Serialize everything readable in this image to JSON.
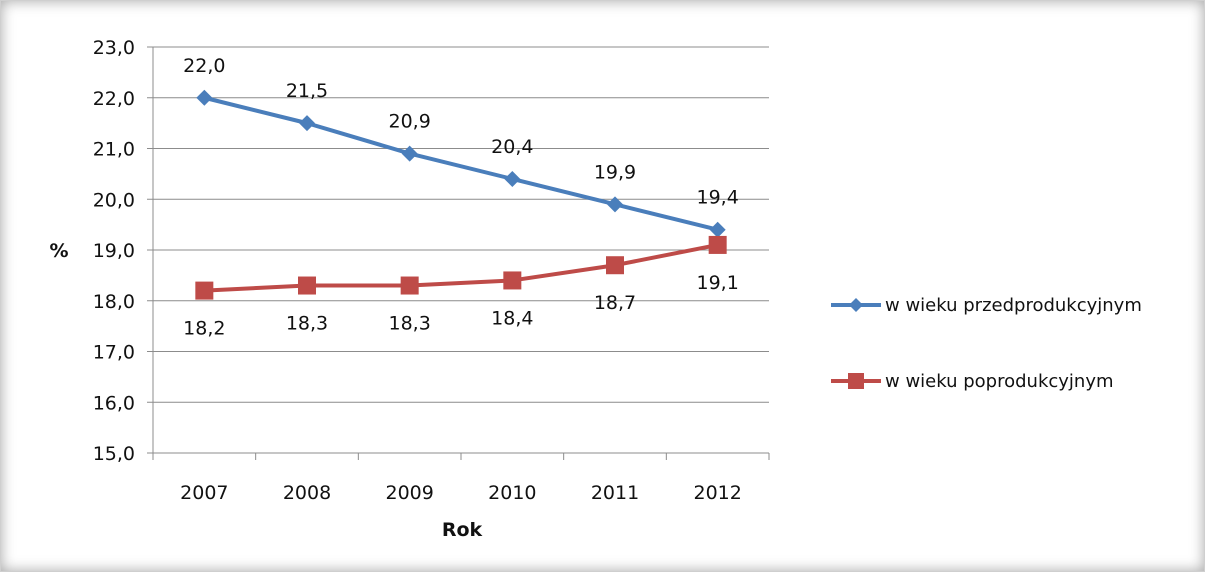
{
  "chart_data": {
    "type": "line",
    "title": "",
    "xlabel": "Rok",
    "ylabel": "%",
    "categories": [
      "2007",
      "2008",
      "2009",
      "2010",
      "2011",
      "2012"
    ],
    "ylim": [
      15.0,
      23.0
    ],
    "ytick_step": 1.0,
    "ytick_labels": [
      "15,0",
      "16,0",
      "17,0",
      "18,0",
      "19,0",
      "20,0",
      "21,0",
      "22,0",
      "23,0"
    ],
    "grid": true,
    "legend_position": "right",
    "series": [
      {
        "name": "w wieku przedprodukcyjnym",
        "values": [
          22.0,
          21.5,
          20.9,
          20.4,
          19.9,
          19.4
        ],
        "labels": [
          "22,0",
          "21,5",
          "20,9",
          "20,4",
          "19,9",
          "19,4"
        ],
        "color": "#4A7EBB",
        "marker": "diamond"
      },
      {
        "name": "w wieku poprodukcyjnym",
        "values": [
          18.2,
          18.3,
          18.3,
          18.4,
          18.7,
          19.1
        ],
        "labels": [
          "18,2",
          "18,3",
          "18,3",
          "18,4",
          "18,7",
          "19,1"
        ],
        "color": "#BE4B48",
        "marker": "square"
      }
    ]
  }
}
